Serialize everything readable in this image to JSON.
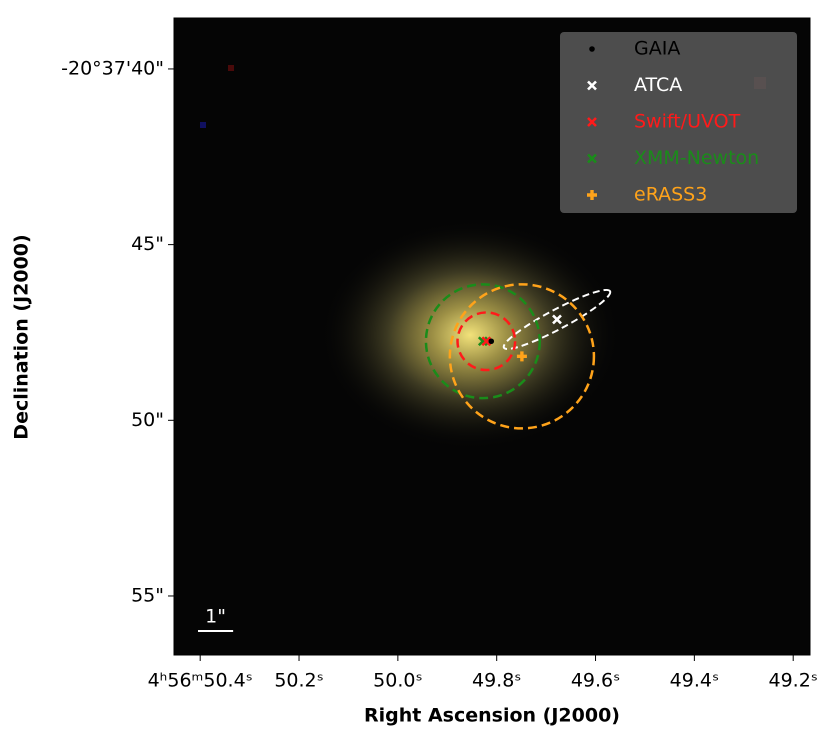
{
  "chart_data": {
    "type": "scatter",
    "xlabel": "Right Ascension (J2000)",
    "ylabel": "Declination (J2000)",
    "xlim": [
      50.453,
      49.166
    ],
    "ylim": [
      56.68,
      38.55
    ],
    "xticks": [
      {
        "value": 50.4,
        "label": "4ʰ56ᵐ50.4ˢ"
      },
      {
        "value": 50.2,
        "label": "50.2ˢ"
      },
      {
        "value": 50.0,
        "label": "50.0ˢ"
      },
      {
        "value": 49.8,
        "label": "49.8ˢ"
      },
      {
        "value": 49.6,
        "label": "49.6ˢ"
      },
      {
        "value": 49.4,
        "label": "49.4ˢ"
      },
      {
        "value": 49.2,
        "label": "49.2ˢ"
      }
    ],
    "yticks": [
      {
        "value": 40,
        "label": "-20°37'40\""
      },
      {
        "value": 45,
        "label": "45\""
      },
      {
        "value": 50,
        "label": "50\""
      },
      {
        "value": 55,
        "label": "55\""
      }
    ],
    "legend_position": "upper right",
    "scale_bar": {
      "label": "1\"",
      "length": 1
    },
    "series": [
      {
        "name": "GAIA",
        "color": "#000000",
        "marker": "dot",
        "x": [
          49.811
        ],
        "y": [
          47.75
        ]
      },
      {
        "name": "ATCA",
        "color": "#ffffff",
        "marker": "x",
        "x": [
          49.678
        ],
        "y": [
          47.13
        ],
        "ellipse": {
          "a": 1.71,
          "b": 0.28,
          "angle": -28
        }
      },
      {
        "name": "Swift/UVOT",
        "color": "#ff1a1a",
        "marker": "x",
        "x": [
          49.821
        ],
        "y": [
          47.75
        ],
        "radius": 0.82
      },
      {
        "name": "XMM-Newton",
        "color": "#1a8c1a",
        "marker": "x",
        "x": [
          49.828
        ],
        "y": [
          47.75
        ],
        "radius": 1.62
      },
      {
        "name": "eRASS3",
        "color": "#ffa31a",
        "marker": "plus",
        "x": [
          49.749
        ],
        "y": [
          48.18
        ],
        "radius": 2.05
      }
    ]
  }
}
